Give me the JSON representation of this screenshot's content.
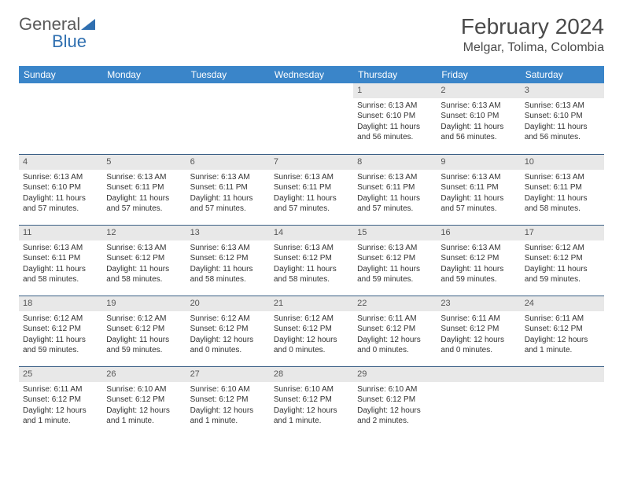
{
  "logo": {
    "part1": "General",
    "part2": "Blue"
  },
  "header": {
    "month_title": "February 2024",
    "location": "Melgar, Tolima, Colombia"
  },
  "style": {
    "header_bg": "#3a85c9",
    "header_text": "#ffffff",
    "daynum_bg": "#e8e8e8",
    "daynum_border": "#3a5f85",
    "body_text": "#333333",
    "title_color": "#4a4a4a",
    "logo_gray": "#5a5a5a",
    "logo_blue": "#2f6fb0",
    "font_family": "Arial",
    "th_fontsize": 12,
    "cell_fontsize": 10,
    "month_fontsize": 28,
    "location_fontsize": 16
  },
  "weekdays": [
    "Sunday",
    "Monday",
    "Tuesday",
    "Wednesday",
    "Thursday",
    "Friday",
    "Saturday"
  ],
  "weeks": [
    [
      null,
      null,
      null,
      null,
      {
        "n": "1",
        "sr": "6:13 AM",
        "ss": "6:10 PM",
        "d1": "Daylight: 11 hours",
        "d2": "and 56 minutes."
      },
      {
        "n": "2",
        "sr": "6:13 AM",
        "ss": "6:10 PM",
        "d1": "Daylight: 11 hours",
        "d2": "and 56 minutes."
      },
      {
        "n": "3",
        "sr": "6:13 AM",
        "ss": "6:10 PM",
        "d1": "Daylight: 11 hours",
        "d2": "and 56 minutes."
      }
    ],
    [
      {
        "n": "4",
        "sr": "6:13 AM",
        "ss": "6:10 PM",
        "d1": "Daylight: 11 hours",
        "d2": "and 57 minutes."
      },
      {
        "n": "5",
        "sr": "6:13 AM",
        "ss": "6:11 PM",
        "d1": "Daylight: 11 hours",
        "d2": "and 57 minutes."
      },
      {
        "n": "6",
        "sr": "6:13 AM",
        "ss": "6:11 PM",
        "d1": "Daylight: 11 hours",
        "d2": "and 57 minutes."
      },
      {
        "n": "7",
        "sr": "6:13 AM",
        "ss": "6:11 PM",
        "d1": "Daylight: 11 hours",
        "d2": "and 57 minutes."
      },
      {
        "n": "8",
        "sr": "6:13 AM",
        "ss": "6:11 PM",
        "d1": "Daylight: 11 hours",
        "d2": "and 57 minutes."
      },
      {
        "n": "9",
        "sr": "6:13 AM",
        "ss": "6:11 PM",
        "d1": "Daylight: 11 hours",
        "d2": "and 57 minutes."
      },
      {
        "n": "10",
        "sr": "6:13 AM",
        "ss": "6:11 PM",
        "d1": "Daylight: 11 hours",
        "d2": "and 58 minutes."
      }
    ],
    [
      {
        "n": "11",
        "sr": "6:13 AM",
        "ss": "6:11 PM",
        "d1": "Daylight: 11 hours",
        "d2": "and 58 minutes."
      },
      {
        "n": "12",
        "sr": "6:13 AM",
        "ss": "6:12 PM",
        "d1": "Daylight: 11 hours",
        "d2": "and 58 minutes."
      },
      {
        "n": "13",
        "sr": "6:13 AM",
        "ss": "6:12 PM",
        "d1": "Daylight: 11 hours",
        "d2": "and 58 minutes."
      },
      {
        "n": "14",
        "sr": "6:13 AM",
        "ss": "6:12 PM",
        "d1": "Daylight: 11 hours",
        "d2": "and 58 minutes."
      },
      {
        "n": "15",
        "sr": "6:13 AM",
        "ss": "6:12 PM",
        "d1": "Daylight: 11 hours",
        "d2": "and 59 minutes."
      },
      {
        "n": "16",
        "sr": "6:13 AM",
        "ss": "6:12 PM",
        "d1": "Daylight: 11 hours",
        "d2": "and 59 minutes."
      },
      {
        "n": "17",
        "sr": "6:12 AM",
        "ss": "6:12 PM",
        "d1": "Daylight: 11 hours",
        "d2": "and 59 minutes."
      }
    ],
    [
      {
        "n": "18",
        "sr": "6:12 AM",
        "ss": "6:12 PM",
        "d1": "Daylight: 11 hours",
        "d2": "and 59 minutes."
      },
      {
        "n": "19",
        "sr": "6:12 AM",
        "ss": "6:12 PM",
        "d1": "Daylight: 11 hours",
        "d2": "and 59 minutes."
      },
      {
        "n": "20",
        "sr": "6:12 AM",
        "ss": "6:12 PM",
        "d1": "Daylight: 12 hours",
        "d2": "and 0 minutes."
      },
      {
        "n": "21",
        "sr": "6:12 AM",
        "ss": "6:12 PM",
        "d1": "Daylight: 12 hours",
        "d2": "and 0 minutes."
      },
      {
        "n": "22",
        "sr": "6:11 AM",
        "ss": "6:12 PM",
        "d1": "Daylight: 12 hours",
        "d2": "and 0 minutes."
      },
      {
        "n": "23",
        "sr": "6:11 AM",
        "ss": "6:12 PM",
        "d1": "Daylight: 12 hours",
        "d2": "and 0 minutes."
      },
      {
        "n": "24",
        "sr": "6:11 AM",
        "ss": "6:12 PM",
        "d1": "Daylight: 12 hours",
        "d2": "and 1 minute."
      }
    ],
    [
      {
        "n": "25",
        "sr": "6:11 AM",
        "ss": "6:12 PM",
        "d1": "Daylight: 12 hours",
        "d2": "and 1 minute."
      },
      {
        "n": "26",
        "sr": "6:10 AM",
        "ss": "6:12 PM",
        "d1": "Daylight: 12 hours",
        "d2": "and 1 minute."
      },
      {
        "n": "27",
        "sr": "6:10 AM",
        "ss": "6:12 PM",
        "d1": "Daylight: 12 hours",
        "d2": "and 1 minute."
      },
      {
        "n": "28",
        "sr": "6:10 AM",
        "ss": "6:12 PM",
        "d1": "Daylight: 12 hours",
        "d2": "and 1 minute."
      },
      {
        "n": "29",
        "sr": "6:10 AM",
        "ss": "6:12 PM",
        "d1": "Daylight: 12 hours",
        "d2": "and 2 minutes."
      },
      null,
      null
    ]
  ]
}
